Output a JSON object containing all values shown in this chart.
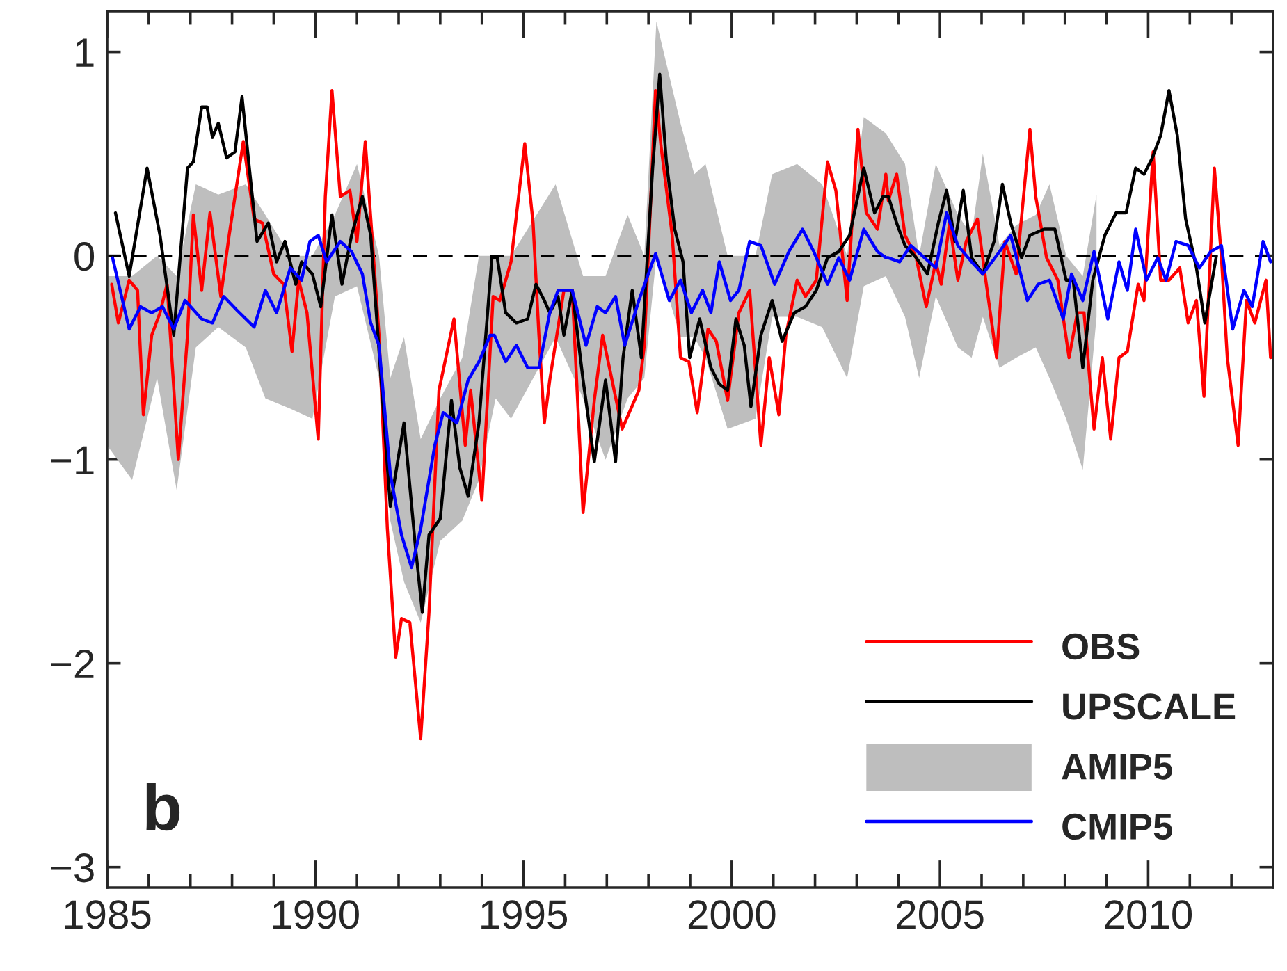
{
  "chart_data": {
    "type": "line",
    "xlim": [
      1985,
      2013
    ],
    "ylim": [
      -3.1,
      1.2
    ],
    "xticks": [
      1985,
      {
        "value": 1986,
        "label": null
      },
      {
        "value": 1987,
        "label": null
      },
      {
        "value": 1988,
        "label": null
      },
      {
        "value": 1989,
        "label": null
      },
      1990,
      {
        "value": 1991,
        "label": null
      },
      {
        "value": 1992,
        "label": null
      },
      {
        "value": 1993,
        "label": null
      },
      {
        "value": 1994,
        "label": null
      },
      1995,
      {
        "value": 1996,
        "label": null
      },
      {
        "value": 1997,
        "label": null
      },
      {
        "value": 1998,
        "label": null
      },
      {
        "value": 1999,
        "label": null
      },
      2000,
      {
        "value": 2001,
        "label": null
      },
      {
        "value": 2002,
        "label": null
      },
      {
        "value": 2003,
        "label": null
      },
      {
        "value": 2004,
        "label": null
      },
      2005,
      {
        "value": 2006,
        "label": null
      },
      {
        "value": 2007,
        "label": null
      },
      {
        "value": 2008,
        "label": null
      },
      {
        "value": 2009,
        "label": null
      },
      2010,
      {
        "value": 2011,
        "label": null
      },
      {
        "value": 2012,
        "label": null
      }
    ],
    "yticks": [
      {
        "value": -3,
        "label": "−3"
      },
      {
        "value": -2,
        "label": "−2"
      },
      {
        "value": -1,
        "label": "−1"
      },
      0,
      1
    ],
    "grid": false,
    "legend": "bottom right",
    "line_style": "solid",
    "annotations": [
      "b"
    ],
    "ref_lines": [
      {
        "axis": "y",
        "value": 0,
        "label": null,
        "color": "#000000",
        "line_style": "dashed"
      }
    ],
    "series": [
      {
        "name": "OBS",
        "color": "#ff0000",
        "x": [
          1985.11,
          1985.27,
          1985.53,
          1985.73,
          1985.87,
          1986.07,
          1986.27,
          1986.44,
          1986.71,
          1986.93,
          1987.07,
          1987.27,
          1987.47,
          1987.73,
          1987.93,
          1988.27,
          1988.53,
          1988.73,
          1989.0,
          1989.24,
          1989.44,
          1989.6,
          1989.8,
          1990.07,
          1990.24,
          1990.4,
          1990.6,
          1990.83,
          1991.0,
          1991.2,
          1991.53,
          1991.73,
          1991.93,
          1992.07,
          1992.27,
          1992.53,
          1992.73,
          1992.97,
          1993.33,
          1993.6,
          1993.73,
          1994.0,
          1994.27,
          1994.43,
          1994.7,
          1995.03,
          1995.23,
          1995.37,
          1995.5,
          1995.63,
          1995.97,
          1996.17,
          1996.43,
          1996.7,
          1996.9,
          1997.37,
          1997.77,
          1997.9,
          1998.17,
          1998.3,
          1998.57,
          1998.77,
          1998.97,
          1999.17,
          1999.43,
          1999.63,
          1999.9,
          2000.17,
          2000.43,
          2000.7,
          2000.9,
          2001.13,
          2001.3,
          2001.57,
          2001.77,
          2002.03,
          2002.3,
          2002.5,
          2002.77,
          2003.03,
          2003.23,
          2003.5,
          2003.7,
          2003.76,
          2003.96,
          2004.16,
          2004.43,
          2004.67,
          2004.9,
          2005.03,
          2005.23,
          2005.43,
          2005.63,
          2005.9,
          2006.1,
          2006.36,
          2006.56,
          2006.83,
          2007.16,
          2007.3,
          2007.56,
          2007.83,
          2008.1,
          2008.3,
          2008.46,
          2008.7,
          2008.9,
          2009.1,
          2009.3,
          2009.5,
          2009.76,
          2009.9,
          2010.12,
          2010.3,
          2010.5,
          2010.76,
          2010.96,
          2011.16,
          2011.34,
          2011.59,
          2011.76,
          2011.9,
          2012.16,
          2012.36,
          2012.56,
          2012.83,
          2012.94
        ],
        "values": [
          -0.14,
          -0.33,
          -0.12,
          -0.17,
          -0.78,
          -0.39,
          -0.28,
          -0.14,
          -1.0,
          -0.39,
          0.2,
          -0.17,
          0.21,
          -0.2,
          0.1,
          0.56,
          0.18,
          0.16,
          -0.09,
          -0.14,
          -0.47,
          -0.12,
          -0.28,
          -0.9,
          0.29,
          0.81,
          0.29,
          0.32,
          0.07,
          0.56,
          -0.39,
          -1.34,
          -1.97,
          -1.78,
          -1.8,
          -2.37,
          -1.75,
          -0.66,
          -0.31,
          -0.93,
          -0.66,
          -1.2,
          -0.2,
          -0.22,
          -0.03,
          0.55,
          0.16,
          -0.39,
          -0.82,
          -0.61,
          -0.17,
          -0.17,
          -1.26,
          -0.71,
          -0.39,
          -0.85,
          -0.66,
          -0.44,
          0.81,
          0.54,
          0.1,
          -0.5,
          -0.52,
          -0.77,
          -0.36,
          -0.42,
          -0.71,
          -0.28,
          -0.17,
          -0.93,
          -0.5,
          -0.78,
          -0.39,
          -0.12,
          -0.2,
          -0.12,
          0.46,
          0.32,
          -0.22,
          0.62,
          0.21,
          0.13,
          0.4,
          0.27,
          0.4,
          0.1,
          -0.01,
          -0.25,
          -0.03,
          -0.14,
          0.16,
          -0.12,
          0.07,
          0.18,
          -0.12,
          -0.5,
          0.07,
          -0.09,
          0.62,
          0.29,
          -0.01,
          -0.12,
          -0.5,
          -0.28,
          -0.28,
          -0.85,
          -0.5,
          -0.9,
          -0.5,
          -0.47,
          -0.14,
          -0.22,
          0.51,
          -0.12,
          -0.12,
          -0.06,
          -0.33,
          -0.22,
          -0.69,
          0.43,
          -0.01,
          -0.5,
          -0.93,
          -0.22,
          -0.33,
          -0.12,
          -0.5
        ]
      },
      {
        "name": "UPSCALE",
        "color": "#000000",
        "x": [
          1985.2,
          1985.53,
          1985.96,
          1986.27,
          1986.6,
          1986.93,
          1987.07,
          1987.27,
          1987.4,
          1987.53,
          1987.67,
          1987.87,
          1988.07,
          1988.24,
          1988.4,
          1988.6,
          1988.87,
          1989.07,
          1989.27,
          1989.53,
          1989.67,
          1989.93,
          1990.13,
          1990.4,
          1990.64,
          1990.87,
          1991.13,
          1991.33,
          1991.8,
          1992.13,
          1992.4,
          1992.57,
          1992.73,
          1993.0,
          1993.27,
          1993.47,
          1993.67,
          1993.93,
          1994.24,
          1994.37,
          1994.57,
          1994.83,
          1995.1,
          1995.3,
          1995.5,
          1995.63,
          1995.83,
          1995.97,
          1996.17,
          1996.43,
          1996.7,
          1996.97,
          1997.21,
          1997.39,
          1997.61,
          1997.83,
          1998.1,
          1998.27,
          1998.43,
          1998.63,
          1998.83,
          1998.99,
          1999.23,
          1999.5,
          1999.7,
          1999.9,
          2000.1,
          2000.3,
          2000.46,
          2000.7,
          2000.97,
          2001.21,
          2001.5,
          2001.77,
          2002.03,
          2002.3,
          2002.57,
          2002.83,
          2003.17,
          2003.43,
          2003.63,
          2003.76,
          2003.96,
          2004.16,
          2004.43,
          2004.7,
          2004.96,
          2005.16,
          2005.36,
          2005.56,
          2005.76,
          2006.03,
          2006.3,
          2006.5,
          2006.7,
          2006.96,
          2007.16,
          2007.5,
          2007.76,
          2008.03,
          2008.2,
          2008.43,
          2008.67,
          2008.96,
          2009.23,
          2009.47,
          2009.7,
          2009.9,
          2010.1,
          2010.3,
          2010.5,
          2010.7,
          2010.9,
          2011.16,
          2011.36,
          2011.63
        ],
        "values": [
          0.21,
          -0.1,
          0.43,
          0.1,
          -0.39,
          0.43,
          0.46,
          0.73,
          0.73,
          0.58,
          0.65,
          0.48,
          0.51,
          0.78,
          0.46,
          0.07,
          0.16,
          -0.03,
          0.07,
          -0.14,
          -0.03,
          -0.09,
          -0.25,
          0.2,
          -0.14,
          0.1,
          0.29,
          0.1,
          -1.23,
          -0.82,
          -1.42,
          -1.75,
          -1.37,
          -1.29,
          -0.71,
          -1.04,
          -1.18,
          -0.82,
          -0.01,
          -0.01,
          -0.28,
          -0.33,
          -0.31,
          -0.14,
          -0.22,
          -0.28,
          -0.2,
          -0.39,
          -0.17,
          -0.61,
          -1.01,
          -0.61,
          -1.01,
          -0.5,
          -0.17,
          -0.5,
          0.43,
          0.89,
          0.46,
          0.13,
          -0.03,
          -0.5,
          -0.31,
          -0.55,
          -0.63,
          -0.66,
          -0.31,
          -0.44,
          -0.74,
          -0.39,
          -0.22,
          -0.42,
          -0.28,
          -0.25,
          -0.17,
          -0.01,
          0.02,
          0.1,
          0.43,
          0.21,
          0.29,
          0.29,
          0.16,
          0.05,
          -0.01,
          -0.09,
          0.16,
          0.32,
          0.07,
          0.32,
          -0.01,
          -0.09,
          0.07,
          0.35,
          0.16,
          -0.01,
          0.1,
          0.13,
          0.13,
          -0.12,
          -0.12,
          -0.55,
          -0.12,
          0.1,
          0.21,
          0.21,
          0.43,
          0.4,
          0.48,
          0.59,
          0.81,
          0.59,
          0.18,
          -0.06,
          -0.33,
          -0.01
        ]
      },
      {
        "name": "AMIP5",
        "color": "#bebebe",
        "x": [
          1985.0,
          1985.6,
          1986.2,
          1986.67,
          1987.13,
          1987.67,
          1988.33,
          1988.8,
          1989.4,
          1989.93,
          1990.47,
          1991.0,
          1991.53,
          1991.8,
          1992.13,
          1992.53,
          1993.0,
          1993.53,
          1993.93,
          1994.33,
          1994.7,
          1995.77,
          1996.43,
          1996.97,
          1997.5,
          1997.9,
          1998.19,
          1998.77,
          1999.1,
          1999.37,
          1999.9,
          2000.57,
          2000.97,
          2001.57,
          2002.17,
          2002.77,
          2003.17,
          2003.7,
          2004.16,
          2004.5,
          2004.9,
          2005.43,
          2005.76,
          2006.03,
          2006.43,
          2006.83,
          2007.3,
          2007.63,
          2008.03,
          2008.43,
          2008.76
        ],
        "lower": [
          -0.93,
          -1.1,
          -0.6,
          -1.15,
          -0.45,
          -0.35,
          -0.45,
          -0.7,
          -0.75,
          -0.8,
          -0.2,
          -0.15,
          -0.6,
          -1.3,
          -1.6,
          -1.8,
          -1.4,
          -1.3,
          -1.1,
          -0.7,
          -0.8,
          -0.4,
          -0.7,
          -1.0,
          -0.7,
          -0.6,
          0.0,
          -0.4,
          -0.4,
          -0.5,
          -0.85,
          -0.8,
          -0.3,
          -0.3,
          -0.35,
          -0.6,
          -0.15,
          -0.1,
          -0.3,
          -0.6,
          -0.2,
          -0.45,
          -0.5,
          -0.3,
          -0.55,
          -0.5,
          -0.45,
          -0.6,
          -0.8,
          -1.05,
          -0.3
        ],
        "upper": [
          -0.1,
          -0.1,
          0.0,
          -0.1,
          0.35,
          0.3,
          0.35,
          0.2,
          0.0,
          0.0,
          0.2,
          0.45,
          0.0,
          -0.6,
          -0.4,
          -0.9,
          -0.7,
          -0.5,
          0.0,
          0.0,
          0.0,
          0.35,
          -0.1,
          -0.1,
          0.2,
          0.0,
          1.15,
          0.65,
          0.4,
          0.45,
          0.0,
          0.0,
          0.4,
          0.45,
          0.35,
          0.0,
          0.68,
          0.6,
          0.45,
          0.0,
          0.45,
          0.2,
          0.1,
          0.5,
          0.05,
          0.15,
          0.2,
          0.35,
          0.0,
          -0.1,
          0.3
        ],
        "values": [
          null,
          null,
          null,
          null,
          null,
          null,
          null,
          null,
          null,
          null,
          null,
          null,
          null,
          null,
          null,
          null,
          null,
          null,
          null,
          null,
          null,
          null,
          null,
          null,
          null,
          null,
          null,
          null,
          null,
          null,
          null,
          null,
          null,
          null,
          null,
          null,
          null,
          null,
          null,
          null,
          null,
          null,
          null,
          null,
          null,
          null,
          null,
          null,
          null,
          null,
          null
        ]
      },
      {
        "name": "CMIP5",
        "color": "#0000ff",
        "x": [
          1985.13,
          1985.53,
          1985.8,
          1986.07,
          1986.33,
          1986.6,
          1986.87,
          1987.27,
          1987.53,
          1987.8,
          1988.13,
          1988.53,
          1988.8,
          1989.07,
          1989.4,
          1989.67,
          1989.87,
          1990.07,
          1990.27,
          1990.6,
          1990.87,
          1991.13,
          1991.33,
          1991.53,
          1991.8,
          1992.07,
          1992.31,
          1992.53,
          1992.87,
          1993.07,
          1993.4,
          1993.67,
          1993.93,
          1994.2,
          1994.3,
          1994.57,
          1994.83,
          1995.1,
          1995.37,
          1995.63,
          1995.83,
          1996.17,
          1996.5,
          1996.77,
          1996.97,
          1997.21,
          1997.43,
          1997.77,
          1998.17,
          1998.5,
          1998.77,
          1999.03,
          1999.3,
          1999.5,
          1999.7,
          1999.97,
          2000.17,
          2000.43,
          2000.7,
          2001.03,
          2001.37,
          2001.7,
          2001.97,
          2002.3,
          2002.57,
          2002.83,
          2003.17,
          2003.5,
          2003.7,
          2003.76,
          2004.03,
          2004.3,
          2004.63,
          2004.9,
          2005.16,
          2005.43,
          2005.76,
          2006.03,
          2006.43,
          2006.7,
          2007.1,
          2007.36,
          2007.63,
          2007.96,
          2008.16,
          2008.43,
          2008.7,
          2009.03,
          2009.3,
          2009.5,
          2009.7,
          2009.96,
          2010.23,
          2010.43,
          2010.67,
          2010.96,
          2011.23,
          2011.5,
          2011.76,
          2012.03,
          2012.3,
          2012.5,
          2012.76,
          2012.94
        ],
        "values": [
          -0.01,
          -0.36,
          -0.25,
          -0.28,
          -0.25,
          -0.36,
          -0.22,
          -0.31,
          -0.33,
          -0.2,
          -0.27,
          -0.35,
          -0.17,
          -0.28,
          -0.06,
          -0.12,
          0.07,
          0.1,
          -0.03,
          0.07,
          0.02,
          -0.09,
          -0.33,
          -0.44,
          -1.07,
          -1.37,
          -1.53,
          -1.34,
          -0.93,
          -0.77,
          -0.82,
          -0.61,
          -0.52,
          -0.39,
          -0.39,
          -0.52,
          -0.44,
          -0.55,
          -0.55,
          -0.28,
          -0.17,
          -0.17,
          -0.44,
          -0.25,
          -0.28,
          -0.2,
          -0.44,
          -0.22,
          0.01,
          -0.22,
          -0.12,
          -0.28,
          -0.17,
          -0.28,
          -0.03,
          -0.22,
          -0.17,
          0.07,
          0.05,
          -0.14,
          0.02,
          0.13,
          0.02,
          -0.14,
          -0.01,
          -0.12,
          0.13,
          0.02,
          -0.01,
          -0.01,
          -0.03,
          0.05,
          -0.01,
          -0.06,
          0.21,
          0.05,
          -0.03,
          -0.09,
          0.02,
          0.1,
          -0.22,
          -0.14,
          -0.12,
          -0.31,
          -0.09,
          -0.22,
          0.02,
          -0.31,
          -0.03,
          -0.17,
          0.13,
          -0.12,
          -0.01,
          -0.12,
          0.07,
          0.05,
          -0.06,
          0.02,
          0.05,
          -0.36,
          -0.17,
          -0.25,
          0.07,
          -0.03
        ]
      }
    ]
  }
}
